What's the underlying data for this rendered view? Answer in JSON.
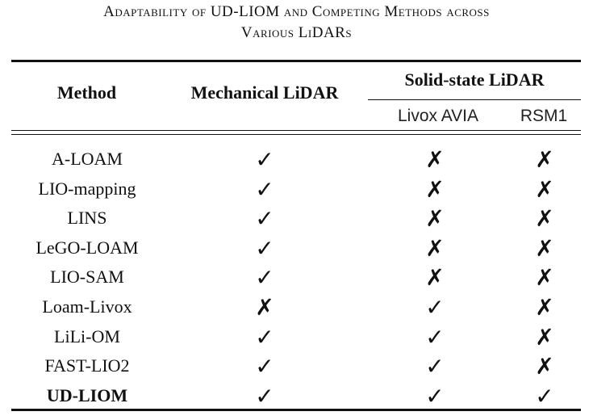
{
  "caption": {
    "line1": "Adaptability of UD-LIOM and Competing Methods across",
    "line2": "Various LiDARs"
  },
  "table": {
    "headers": {
      "method": "Method",
      "mechanical": "Mechanical LiDAR",
      "solid_state": "Solid-state LiDAR",
      "livox": "Livox AVIA",
      "rsm": "RSM1"
    },
    "marks": {
      "yes": "✓",
      "no": "✗"
    },
    "rows": [
      {
        "method": "A-LOAM",
        "mechanical": "✓",
        "livox": "✗",
        "rsm": "✗"
      },
      {
        "method": "LIO-mapping",
        "mechanical": "✓",
        "livox": "✗",
        "rsm": "✗"
      },
      {
        "method": "LINS",
        "mechanical": "✓",
        "livox": "✗",
        "rsm": "✗"
      },
      {
        "method": "LeGO-LOAM",
        "mechanical": "✓",
        "livox": "✗",
        "rsm": "✗"
      },
      {
        "method": "LIO-SAM",
        "mechanical": "✓",
        "livox": "✗",
        "rsm": "✗"
      },
      {
        "method": "Loam-Livox",
        "mechanical": "✗",
        "livox": "✓",
        "rsm": "✗"
      },
      {
        "method": "LiLi-OM",
        "mechanical": "✓",
        "livox": "✓",
        "rsm": "✗"
      },
      {
        "method": "FAST-LIO2",
        "mechanical": "✓",
        "livox": "✓",
        "rsm": "✗"
      },
      {
        "method": "UD-LIOM",
        "mechanical": "✓",
        "livox": "✓",
        "rsm": "✓",
        "bold": true
      }
    ]
  }
}
